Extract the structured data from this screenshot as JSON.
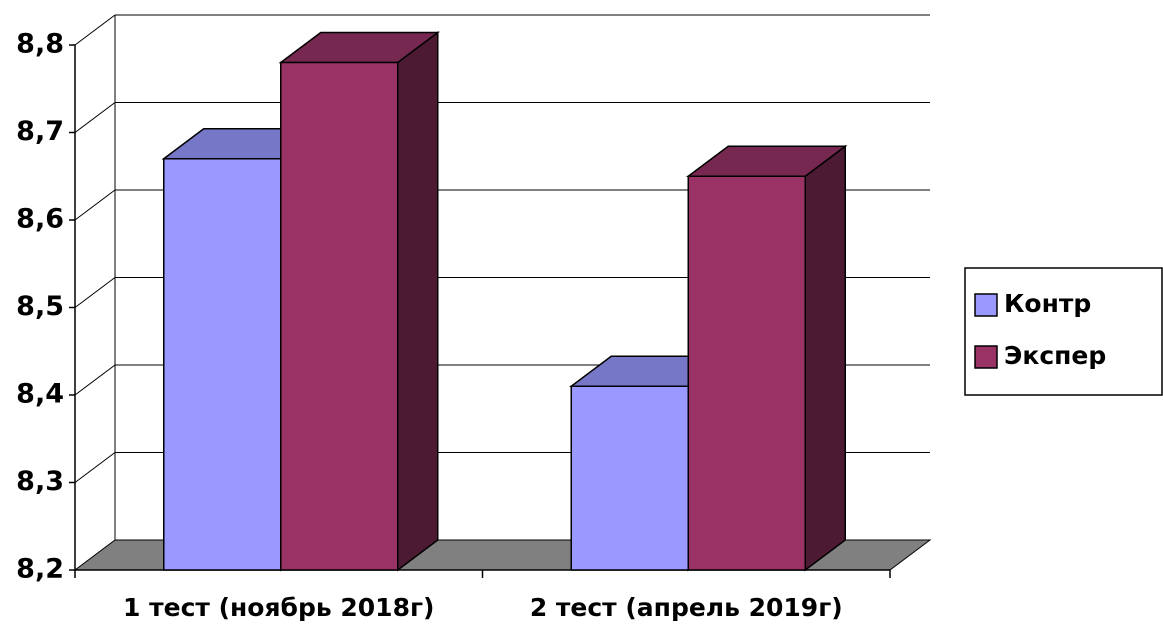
{
  "chart_data": {
    "type": "bar3d",
    "categories": [
      "1 тест (ноябрь 2018г)",
      "2 тест (апрель 2019г)"
    ],
    "series": [
      {
        "name": "Контр",
        "color": "#9999ff",
        "values": [
          8.67,
          8.41
        ]
      },
      {
        "name": "Экспер",
        "color": "#993366",
        "values": [
          8.78,
          8.65
        ]
      }
    ],
    "ylim": [
      8.2,
      8.8
    ],
    "yticks": [
      {
        "value": 8.2,
        "label": "8,2"
      },
      {
        "value": 8.3,
        "label": "8,3"
      },
      {
        "value": 8.4,
        "label": "8,4"
      },
      {
        "value": 8.5,
        "label": "8,5"
      },
      {
        "value": 8.6,
        "label": "8,6"
      },
      {
        "value": 8.7,
        "label": "8,7"
      },
      {
        "value": 8.8,
        "label": "8,8"
      }
    ],
    "grid": true,
    "legend": "right"
  }
}
